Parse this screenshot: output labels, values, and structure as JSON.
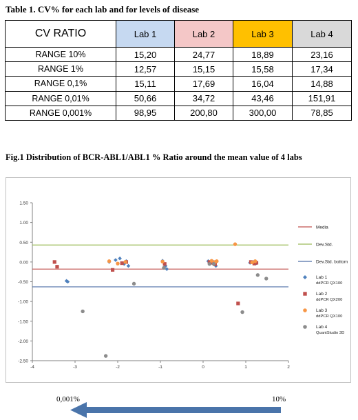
{
  "table": {
    "caption": "Table 1.  CV% for each lab and for levels of disease",
    "header": [
      "CV RATIO",
      "Lab 1",
      "Lab 2",
      "Lab 3",
      "Lab 4"
    ],
    "header_colors": [
      "#ffffff",
      "#c6d9f1",
      "#f4c7c7",
      "#ffc000",
      "#d9d9d9"
    ],
    "rows": [
      [
        "RANGE 10%",
        "15,20",
        "24,77",
        "18,89",
        "23,16"
      ],
      [
        "RANGE 1%",
        "12,57",
        "15,15",
        "15,58",
        "17,34"
      ],
      [
        "RANGE 0,1%",
        "15,11",
        "17,69",
        "16,04",
        "14,88"
      ],
      [
        "RANGE 0,01%",
        "50,66",
        "34,72",
        "43,46",
        "151,91"
      ],
      [
        "RANGE 0,001%",
        "98,95",
        "200,80",
        "300,00",
        "78,85"
      ]
    ]
  },
  "figure": {
    "caption": "Fig.1 Distribution of BCR-ABL1/ABL1 % Ratio around the mean value of 4 labs"
  },
  "chart_data": {
    "type": "scatter",
    "xlim": [
      -4,
      2
    ],
    "ylim": [
      -2.5,
      1.5
    ],
    "xticks": [
      -4,
      -3,
      -2,
      -1,
      0,
      1,
      2
    ],
    "yticks": [
      1.5,
      1.0,
      0.5,
      0.0,
      -0.5,
      -1.0,
      -1.5,
      -2.0,
      -2.5
    ],
    "ytick_labels": [
      "1.50",
      "1.00",
      "0.50",
      "0.00",
      "-0.50",
      "-1.00",
      "-1.50",
      "-2.00",
      "-2.50"
    ],
    "reference_lines": [
      {
        "name": "Media",
        "y": -0.18,
        "color": "#c0504d"
      },
      {
        "name": "Dev.Std.",
        "y": 0.43,
        "color": "#9bbb59"
      },
      {
        "name": "Dev.Std. bottom",
        "y": -0.63,
        "color": "#4f6fa8"
      }
    ],
    "series": [
      {
        "name": "Lab 1",
        "sub": "ddPCR QX100",
        "color": "#4f81bd",
        "marker": "diamond",
        "points": [
          [
            -3.2,
            -0.48
          ],
          [
            -3.17,
            -0.5
          ],
          [
            -2.2,
            0.0
          ],
          [
            -2.05,
            0.05
          ],
          [
            -1.95,
            0.09
          ],
          [
            -1.85,
            -0.05
          ],
          [
            -1.8,
            0.02
          ],
          [
            -1.75,
            -0.1
          ],
          [
            -0.95,
            0.03
          ],
          [
            -0.88,
            -0.1
          ],
          [
            -0.85,
            -0.18
          ],
          [
            0.12,
            0.02
          ],
          [
            0.18,
            -0.03
          ],
          [
            0.25,
            0.0
          ],
          [
            0.3,
            -0.1
          ],
          [
            1.1,
            -0.02
          ],
          [
            1.18,
            0.0
          ],
          [
            1.25,
            -0.03
          ]
        ]
      },
      {
        "name": "Lab 2",
        "sub": "ddPCR QX200",
        "color": "#c0504d",
        "marker": "square",
        "points": [
          [
            -3.48,
            0.0
          ],
          [
            -3.42,
            -0.12
          ],
          [
            -2.12,
            -0.2
          ],
          [
            -1.9,
            -0.03
          ],
          [
            -1.8,
            0.0
          ],
          [
            -0.9,
            -0.05
          ],
          [
            0.15,
            0.0
          ],
          [
            0.22,
            -0.02
          ],
          [
            0.28,
            -0.06
          ],
          [
            0.82,
            -1.05
          ],
          [
            1.12,
            0.0
          ],
          [
            1.2,
            -0.04
          ],
          [
            1.25,
            -0.02
          ]
        ]
      },
      {
        "name": "Lab 3",
        "sub": "ddPCR QX100",
        "color": "#f79646",
        "marker": "circle",
        "points": [
          [
            -2.2,
            0.02
          ],
          [
            -2.0,
            -0.04
          ],
          [
            -1.82,
            0.0
          ],
          [
            -0.95,
            0.01
          ],
          [
            0.2,
            0.03
          ],
          [
            0.28,
            0.0
          ],
          [
            0.32,
            0.02
          ],
          [
            0.75,
            0.45
          ],
          [
            1.15,
            -0.01
          ],
          [
            1.22,
            0.02
          ]
        ]
      },
      {
        "name": "Lab 4",
        "sub": "QuantStudio 3D",
        "color": "#8c8c8c",
        "marker": "circle",
        "points": [
          [
            -2.82,
            -1.25
          ],
          [
            -2.28,
            -2.38
          ],
          [
            -1.62,
            -0.55
          ],
          [
            -0.92,
            -0.15
          ],
          [
            0.15,
            -0.05
          ],
          [
            0.25,
            -0.05
          ],
          [
            0.92,
            -1.27
          ],
          [
            1.28,
            -0.33
          ],
          [
            1.48,
            -0.42
          ]
        ]
      }
    ]
  },
  "axis_annotation": {
    "left_label": "0,001%",
    "right_label": "10%",
    "arrow_color": "#4a74aa"
  }
}
